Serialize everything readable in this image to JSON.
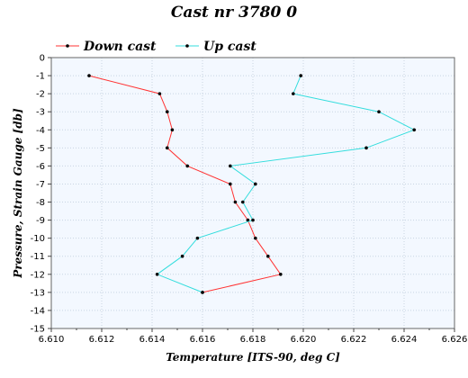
{
  "chart_data": {
    "type": "line",
    "title": "Cast nr 3780 0",
    "xlabel": "Temperature [ITS-90, deg C]",
    "ylabel": "Pressure, Strain Gauge [db]",
    "xlim": [
      6.61,
      6.626
    ],
    "ylim": [
      -15,
      0
    ],
    "x_ticks": [
      "6.610",
      "6.612",
      "6.614",
      "6.616",
      "6.618",
      "6.620",
      "6.622",
      "6.624",
      "6.626"
    ],
    "y_ticks": [
      "0",
      "-1",
      "-2",
      "-3",
      "-4",
      "-5",
      "-6",
      "-7",
      "-8",
      "-9",
      "-10",
      "-11",
      "-12",
      "-13",
      "-14",
      "-15"
    ],
    "grid": true,
    "legend_position": "top-left",
    "series": [
      {
        "name": "Down cast",
        "color": "#ff3333",
        "marker_color": "#000000",
        "points": [
          {
            "x": 6.6115,
            "y": -1
          },
          {
            "x": 6.6143,
            "y": -2
          },
          {
            "x": 6.6146,
            "y": -3
          },
          {
            "x": 6.6148,
            "y": -4
          },
          {
            "x": 6.6146,
            "y": -5
          },
          {
            "x": 6.6154,
            "y": -6
          },
          {
            "x": 6.6171,
            "y": -7
          },
          {
            "x": 6.6173,
            "y": -8
          },
          {
            "x": 6.6178,
            "y": -9
          },
          {
            "x": 6.6181,
            "y": -10
          },
          {
            "x": 6.6186,
            "y": -11
          },
          {
            "x": 6.6191,
            "y": -12
          },
          {
            "x": 6.616,
            "y": -13
          }
        ]
      },
      {
        "name": "Up cast",
        "color": "#33dddd",
        "marker_color": "#000000",
        "points": [
          {
            "x": 6.6199,
            "y": -1
          },
          {
            "x": 6.6196,
            "y": -2
          },
          {
            "x": 6.623,
            "y": -3
          },
          {
            "x": 6.6244,
            "y": -4
          },
          {
            "x": 6.6225,
            "y": -5
          },
          {
            "x": 6.6171,
            "y": -6
          },
          {
            "x": 6.6181,
            "y": -7
          },
          {
            "x": 6.6176,
            "y": -8
          },
          {
            "x": 6.618,
            "y": -9
          },
          {
            "x": 6.6158,
            "y": -10
          },
          {
            "x": 6.6152,
            "y": -11
          },
          {
            "x": 6.6142,
            "y": -12
          },
          {
            "x": 6.616,
            "y": -13
          }
        ]
      }
    ]
  }
}
